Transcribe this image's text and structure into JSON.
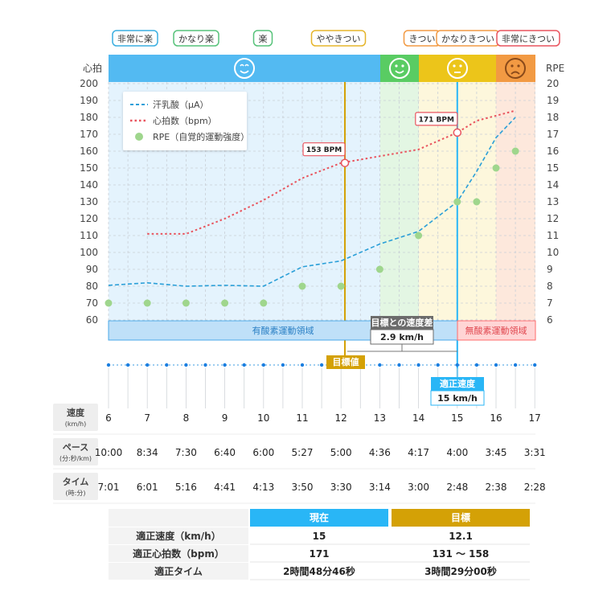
{
  "badges": [
    {
      "label": "非常に楽",
      "color": "#3aaee0"
    },
    {
      "label": "かなり楽",
      "color": "#57c27a"
    },
    {
      "label": "楽",
      "color": "#57c27a"
    },
    {
      "label": "ややきつい",
      "color": "#e5b52b"
    },
    {
      "label": "きつい",
      "color": "#f29a43"
    },
    {
      "label": "かなりきつい",
      "color": "#f29a43"
    },
    {
      "label": "非常にきつい",
      "color": "#e9545e"
    }
  ],
  "axis": {
    "left_title": "心拍",
    "right_title": "RPE"
  },
  "zones": [
    {
      "label": "有酸素運動領域",
      "color": "#4aa8e8"
    },
    {
      "label": "無酸素運動領域",
      "color": "#ff6b6b"
    }
  ],
  "chart_data": {
    "type": "line",
    "x": [
      6,
      7,
      8,
      9,
      10,
      11,
      12,
      13,
      14,
      15,
      16,
      17
    ],
    "y_left_ticks": [
      60,
      70,
      80,
      90,
      100,
      110,
      120,
      130,
      140,
      150,
      160,
      170,
      180,
      190,
      200
    ],
    "y_right_ticks": [
      6,
      7,
      8,
      9,
      10,
      11,
      12,
      13,
      14,
      15,
      16,
      17,
      18,
      19,
      20
    ],
    "ylim_left": [
      60,
      200
    ],
    "ylim_right": [
      6,
      20
    ],
    "series": [
      {
        "name": "汗乳酸（μA）",
        "style": "dashed",
        "color": "#2a9fd8",
        "points": [
          [
            6,
            80.5
          ],
          [
            7,
            82
          ],
          [
            8,
            80
          ],
          [
            9,
            80.5
          ],
          [
            10,
            80
          ],
          [
            11,
            91.5
          ],
          [
            12,
            95
          ],
          [
            13,
            105
          ],
          [
            14,
            112.5
          ],
          [
            15,
            130
          ],
          [
            15.5,
            148
          ],
          [
            16,
            168
          ],
          [
            16.5,
            180
          ]
        ]
      },
      {
        "name": "心拍数（bpm）",
        "style": "dotted",
        "color": "#e9545e",
        "points": [
          [
            7,
            111
          ],
          [
            8,
            111
          ],
          [
            9,
            120
          ],
          [
            10,
            131
          ],
          [
            11,
            144
          ],
          [
            12,
            153
          ],
          [
            13,
            157
          ],
          [
            14,
            161
          ],
          [
            15,
            171
          ],
          [
            15.5,
            178
          ],
          [
            16.5,
            184
          ]
        ]
      },
      {
        "name": "RPE（自覚的運動強度）",
        "style": "markers",
        "color": "#9fd68d",
        "points": [
          [
            6,
            7
          ],
          [
            7,
            7
          ],
          [
            8,
            7
          ],
          [
            9,
            7
          ],
          [
            10,
            7
          ],
          [
            11,
            8
          ],
          [
            12,
            8
          ],
          [
            13,
            9
          ],
          [
            14,
            11
          ],
          [
            15,
            13
          ],
          [
            15.5,
            13
          ],
          [
            16,
            15
          ],
          [
            16.5,
            16
          ]
        ]
      }
    ],
    "callouts": [
      {
        "label": "153 BPM",
        "x": 12.1,
        "y": 153
      },
      {
        "label": "171 BPM",
        "x": 15,
        "y": 171
      }
    ],
    "target_line_x": 12.1,
    "optimal_line_x": 15,
    "speed_diff": {
      "title": "目標との速度差",
      "value": "2.9 km/h"
    },
    "target_label": "目標値",
    "optimal_label": {
      "title": "適正速度",
      "value": "15 km/h"
    },
    "legend_position": "top-left"
  },
  "rows": {
    "speed": {
      "label": "速度",
      "unit": "(km/h)",
      "values": [
        "6",
        "7",
        "8",
        "9",
        "10",
        "11",
        "12",
        "13",
        "14",
        "15",
        "16",
        "17"
      ]
    },
    "pace": {
      "label": "ペース",
      "unit": "(分:秒/km)",
      "values": [
        "10:00",
        "8:34",
        "7:30",
        "6:40",
        "6:00",
        "5:27",
        "5:00",
        "4:36",
        "4:17",
        "4:00",
        "3:45",
        "3:31"
      ]
    },
    "time": {
      "label": "タイム",
      "unit": "(時:分)",
      "values": [
        "7:01",
        "6:01",
        "5:16",
        "4:41",
        "4:13",
        "3:50",
        "3:30",
        "3:14",
        "3:00",
        "2:48",
        "2:38",
        "2:28"
      ]
    }
  },
  "summary": {
    "col_current": "現在",
    "col_target": "目標",
    "colors": {
      "current": "#29b6f6",
      "target": "#d4a106"
    },
    "rows": [
      {
        "label": "適正速度（km/h）",
        "current": "15",
        "target": "12.1"
      },
      {
        "label": "適正心拍数（bpm）",
        "current": "171",
        "target": "131 〜 158"
      },
      {
        "label": "適正タイム",
        "current": "2時間48分46秒",
        "target": "3時間29分00秒"
      }
    ]
  }
}
